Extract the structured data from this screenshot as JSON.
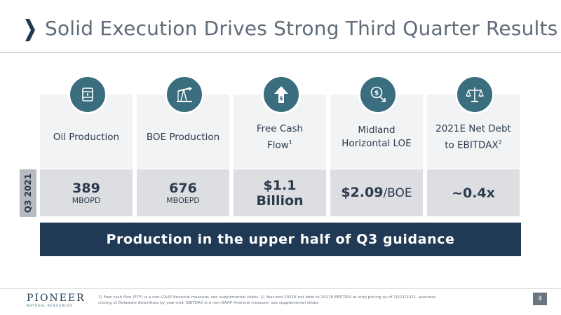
{
  "header": {
    "title": "Solid Execution Drives Strong Third Quarter Results"
  },
  "period_label": "Q3 2021",
  "metrics": [
    {
      "label_lines": [
        "Oil Production"
      ],
      "label_sup": "",
      "value": "389",
      "unit": "MBOPD",
      "icon": "oil-barrel-icon"
    },
    {
      "label_lines": [
        "BOE Production"
      ],
      "label_sup": "",
      "value": "676",
      "unit": "MBOEPD",
      "icon": "pump-jack-icon"
    },
    {
      "label_lines": [
        "Free Cash",
        "Flow"
      ],
      "label_sup": "1",
      "value_lines": [
        "$1.1",
        "Billion"
      ],
      "icon": "dollar-up-arrow-icon"
    },
    {
      "label_lines": [
        "Midland",
        "Horizontal LOE"
      ],
      "label_sup": "",
      "value": "$2.09",
      "unit_inline": "/BOE",
      "icon": "dollar-down-arrow-icon"
    },
    {
      "label_lines": [
        "2021E Net Debt",
        "to EBITDAX"
      ],
      "label_sup": "2",
      "value": "~0.4x",
      "icon": "balance-scale-icon"
    }
  ],
  "banner": {
    "text": "Production in the upper half of Q3 guidance"
  },
  "footer": {
    "logo_main": "PIONEER",
    "logo_sub": "NATURAL RESOURCES",
    "footnote_1": "1) Free cash flow (FCF) is a non-GAAP financial measure; see supplemental slides.  2) Year-end 2021E net debt to 2021E EBITDAX at strip pricing as of 10/21/2021, assumes",
    "footnote_2": "closing of Delaware divestiture by year-end.  EBITDAX is a non-GAAP financial measure; see supplemental slides.",
    "page_number": "4"
  },
  "colors": {
    "navy": "#203954",
    "teal": "#3a6d7e",
    "gray_text": "#5f6b78",
    "card_light": "#f2f3f4",
    "card_dark": "#dcdee1"
  }
}
